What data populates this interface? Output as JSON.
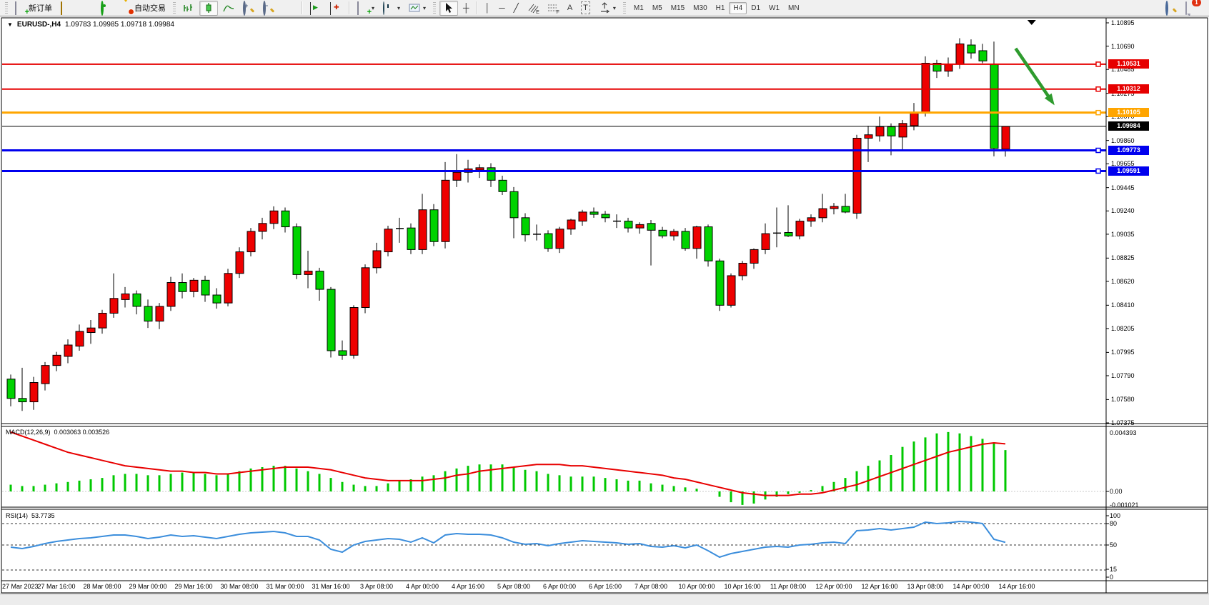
{
  "toolbar": {
    "new_order_label": "新订单",
    "auto_trading_label": "自动交易",
    "notification_count": "1",
    "timeframes": [
      {
        "label": "M1",
        "active": false
      },
      {
        "label": "M5",
        "active": false
      },
      {
        "label": "M15",
        "active": false
      },
      {
        "label": "M30",
        "active": false
      },
      {
        "label": "H1",
        "active": false
      },
      {
        "label": "H4",
        "active": true
      },
      {
        "label": "D1",
        "active": false
      },
      {
        "label": "W1",
        "active": false
      },
      {
        "label": "MN",
        "active": false
      }
    ]
  },
  "icons": {
    "dropdown_arrow": "▾",
    "title_dropdown": "▼",
    "crosshair": "┼",
    "vline": "│",
    "hline": "─",
    "trendline": "╱",
    "channel_suffix": "E",
    "fibo_suffix": "F",
    "text_tool": "A",
    "label_tool": "T",
    "zoom_in_sign": "+",
    "zoom_out_sign": "−",
    "autoscroll_glyph": "▶",
    "chartshift_glyph": "◄"
  },
  "chart": {
    "title_symbol": "EURUSD-,H4",
    "title_ohlc": "1.09783 1.09985 1.09718 1.09984",
    "price_ticks": [
      "1.10895",
      "1.10690",
      "1.10485",
      "1.10275",
      "1.10070",
      "1.09860",
      "1.09655",
      "1.09445",
      "1.09240",
      "1.09035",
      "1.08825",
      "1.08620",
      "1.08410",
      "1.08205",
      "1.07995",
      "1.07790",
      "1.07580",
      "1.07375"
    ],
    "hlines": [
      {
        "price": 1.10531,
        "label": "1.10531",
        "color": "#e60000",
        "width": 2
      },
      {
        "price": 1.10312,
        "label": "1.10312",
        "color": "#e60000",
        "width": 2
      },
      {
        "price": 1.10105,
        "label": "1.10105",
        "color": "#ffa500",
        "width": 3
      },
      {
        "price": 1.09773,
        "label": "1.09773",
        "color": "#0000ee",
        "width": 3
      },
      {
        "price": 1.09591,
        "label": "1.09591",
        "color": "#0000ee",
        "width": 3
      }
    ],
    "bid_line": {
      "price": 1.09984,
      "label": "1.09984",
      "color": "#000000"
    },
    "colors": {
      "bull": "#ee0000",
      "bear": "#00d300",
      "wick": "#000000",
      "macd_hist": "#00c800",
      "macd_signal": "#e80000",
      "rsi_line": "#3c8edc",
      "arrow": "#2e9b2e"
    },
    "time_labels": [
      "27 Mar 2023",
      "27 Mar 16:00",
      "28 Mar 08:00",
      "29 Mar 00:00",
      "29 Mar 16:00",
      "30 Mar 08:00",
      "31 Mar 00:00",
      "31 Mar 16:00",
      "3 Apr 08:00",
      "4 Apr 00:00",
      "4 Apr 16:00",
      "5 Apr 08:00",
      "6 Apr 00:00",
      "6 Apr 16:00",
      "7 Apr 08:00",
      "10 Apr 00:00",
      "10 Apr 16:00",
      "11 Apr 08:00",
      "12 Apr 00:00",
      "12 Apr 16:00",
      "13 Apr 08:00",
      "14 Apr 00:00",
      "14 Apr 16:00"
    ]
  },
  "chart_data": {
    "type": "candlestick",
    "symbol": "EURUSD-",
    "period": "H4",
    "price_range": [
      1.07375,
      1.10895
    ],
    "candles": [
      [
        1.0776,
        1.078,
        1.0752,
        1.0759
      ],
      [
        1.0759,
        1.0786,
        1.0748,
        1.0756
      ],
      [
        1.0756,
        1.0778,
        1.0749,
        1.0773
      ],
      [
        1.0772,
        1.0791,
        1.0766,
        1.0788
      ],
      [
        1.0788,
        1.08,
        1.0783,
        1.0797
      ],
      [
        1.0796,
        1.0811,
        1.079,
        1.0806
      ],
      [
        1.0805,
        1.0824,
        1.0801,
        1.0818
      ],
      [
        1.0817,
        1.0828,
        1.0807,
        1.0821
      ],
      [
        1.0821,
        1.0837,
        1.0816,
        1.0834
      ],
      [
        1.0834,
        1.0869,
        1.083,
        1.0847
      ],
      [
        1.0846,
        1.0857,
        1.0839,
        1.0851
      ],
      [
        1.0851,
        1.0854,
        1.0833,
        1.084
      ],
      [
        1.084,
        1.0846,
        1.0821,
        1.0827
      ],
      [
        1.0827,
        1.0843,
        1.082,
        1.084
      ],
      [
        1.084,
        1.0866,
        1.0836,
        1.0861
      ],
      [
        1.0861,
        1.0869,
        1.0847,
        1.0853
      ],
      [
        1.0853,
        1.0865,
        1.0848,
        1.0863
      ],
      [
        1.0863,
        1.0867,
        1.0844,
        1.085
      ],
      [
        1.085,
        1.0856,
        1.0838,
        1.0843
      ],
      [
        1.0843,
        1.0873,
        1.084,
        1.0869
      ],
      [
        1.0869,
        1.0892,
        1.0865,
        1.0888
      ],
      [
        1.0888,
        1.0909,
        1.0884,
        1.0906
      ],
      [
        1.0906,
        1.0918,
        1.0899,
        1.0913
      ],
      [
        1.0913,
        1.0928,
        1.0908,
        1.0924
      ],
      [
        1.0924,
        1.0927,
        1.0905,
        1.091
      ],
      [
        1.091,
        1.0913,
        1.0864,
        1.0868
      ],
      [
        1.0868,
        1.0889,
        1.0856,
        1.0871
      ],
      [
        1.0871,
        1.0874,
        1.0845,
        1.0855
      ],
      [
        1.0855,
        1.0857,
        1.0795,
        1.0801
      ],
      [
        1.0801,
        1.081,
        1.0793,
        1.0797
      ],
      [
        1.0797,
        1.0841,
        1.0794,
        1.0839
      ],
      [
        1.0839,
        1.0877,
        1.0834,
        1.0874
      ],
      [
        1.0874,
        1.0896,
        1.0869,
        1.0889
      ],
      [
        1.0888,
        1.0911,
        1.0884,
        1.0908
      ],
      [
        1.0908,
        1.0918,
        1.0896,
        1.0909
      ],
      [
        1.0909,
        1.0913,
        1.0886,
        1.089
      ],
      [
        1.089,
        1.0939,
        1.0886,
        1.0925
      ],
      [
        1.0925,
        1.093,
        1.0893,
        1.0897
      ],
      [
        1.0897,
        1.0967,
        1.0891,
        1.0951
      ],
      [
        1.0951,
        1.0974,
        1.0945,
        1.0958
      ],
      [
        1.0958,
        1.0969,
        1.0949,
        1.0961
      ],
      [
        1.096,
        1.0965,
        1.0953,
        1.0962
      ],
      [
        1.0962,
        1.0966,
        1.0945,
        1.0951
      ],
      [
        1.0951,
        1.0955,
        1.0938,
        1.0941
      ],
      [
        1.0941,
        1.0945,
        1.09,
        1.0918
      ],
      [
        1.0918,
        1.0922,
        1.0897,
        1.0903
      ],
      [
        1.0903,
        1.0912,
        1.0898,
        1.0904
      ],
      [
        1.0904,
        1.0907,
        1.0888,
        1.0891
      ],
      [
        1.0891,
        1.091,
        1.0887,
        1.0908
      ],
      [
        1.0908,
        1.0917,
        1.0903,
        1.0916
      ],
      [
        1.0915,
        1.0925,
        1.0911,
        1.0923
      ],
      [
        1.0923,
        1.0927,
        1.0918,
        1.0921
      ],
      [
        1.0921,
        1.0924,
        1.0914,
        1.0918
      ],
      [
        1.0915,
        1.0921,
        1.0909,
        1.0915
      ],
      [
        1.0915,
        1.0918,
        1.0905,
        1.0909
      ],
      [
        1.0909,
        1.0914,
        1.0904,
        1.0912
      ],
      [
        1.0913,
        1.0916,
        1.0876,
        1.0907
      ],
      [
        1.0907,
        1.091,
        1.09,
        1.0902
      ],
      [
        1.0902,
        1.0908,
        1.0898,
        1.0906
      ],
      [
        1.0906,
        1.0909,
        1.0889,
        1.0891
      ],
      [
        1.0891,
        1.0911,
        1.0882,
        1.091
      ],
      [
        1.091,
        1.0912,
        1.0875,
        1.088
      ],
      [
        1.088,
        1.0882,
        1.0836,
        1.0841
      ],
      [
        1.0841,
        1.0869,
        1.0839,
        1.0867
      ],
      [
        1.0867,
        1.088,
        1.0863,
        1.0878
      ],
      [
        1.0878,
        1.0891,
        1.0873,
        1.089
      ],
      [
        1.089,
        1.0913,
        1.0886,
        1.0904
      ],
      [
        1.0904,
        1.0927,
        1.0892,
        1.0905
      ],
      [
        1.0905,
        1.0929,
        1.0901,
        1.0902
      ],
      [
        1.0902,
        1.0917,
        1.0899,
        1.0915
      ],
      [
        1.0915,
        1.0921,
        1.091,
        1.0918
      ],
      [
        1.0918,
        1.0939,
        1.0914,
        1.0926
      ],
      [
        1.0926,
        1.0931,
        1.0921,
        1.0928
      ],
      [
        1.0928,
        1.0939,
        1.0922,
        1.0923
      ],
      [
        1.0922,
        1.0991,
        1.0917,
        1.0988
      ],
      [
        1.0988,
        1.0999,
        1.0967,
        1.0991
      ],
      [
        1.099,
        1.1007,
        1.0985,
        1.0998
      ],
      [
        1.0998,
        1.1001,
        1.0973,
        1.099
      ],
      [
        1.0989,
        1.1004,
        1.0978,
        1.1001
      ],
      [
        1.0999,
        1.1019,
        1.0995,
        1.101
      ],
      [
        1.101,
        1.106,
        1.1007,
        1.1054
      ],
      [
        1.1054,
        1.1057,
        1.1041,
        1.1047
      ],
      [
        1.1047,
        1.1059,
        1.1042,
        1.1053
      ],
      [
        1.1053,
        1.1076,
        1.1049,
        1.1071
      ],
      [
        1.107,
        1.1075,
        1.1058,
        1.1063
      ],
      [
        1.1065,
        1.1071,
        1.1054,
        1.1056
      ],
      [
        1.1053,
        1.1073,
        1.0972,
        1.0979
      ],
      [
        1.09783,
        1.09985,
        1.09718,
        1.09984
      ]
    ],
    "macd": {
      "label": "MACD(12,26,9)",
      "values_text": "0.003063 0.003526",
      "axis_ticks": [
        "0.004393",
        "0.00",
        "-0.001021"
      ],
      "max": 0.004393,
      "min": -0.001021,
      "hist": [
        0.0005,
        0.0004,
        0.0004,
        0.0005,
        0.0006,
        0.0007,
        0.0008,
        0.0009,
        0.001,
        0.0012,
        0.0013,
        0.0013,
        0.0012,
        0.0012,
        0.0013,
        0.0014,
        0.0014,
        0.0013,
        0.0012,
        0.0013,
        0.0015,
        0.0017,
        0.0018,
        0.0019,
        0.0019,
        0.0017,
        0.0015,
        0.0013,
        0.001,
        0.0007,
        0.0005,
        0.0004,
        0.0004,
        0.0006,
        0.0008,
        0.0009,
        0.0011,
        0.0012,
        0.0015,
        0.0017,
        0.0019,
        0.002,
        0.002,
        0.002,
        0.0018,
        0.0016,
        0.0015,
        0.0013,
        0.0012,
        0.0011,
        0.0011,
        0.0011,
        0.001,
        0.0009,
        0.0008,
        0.0008,
        0.0006,
        0.0005,
        0.0004,
        0.0003,
        0.0002,
        0.0,
        -0.0004,
        -0.0008,
        -0.001,
        -0.0009,
        -0.0006,
        -0.0004,
        -0.0002,
        -0.0001,
        0.0001,
        0.0004,
        0.0007,
        0.001,
        0.0015,
        0.0019,
        0.0023,
        0.0027,
        0.0033,
        0.0037,
        0.004,
        0.0043,
        0.0044,
        0.0043,
        0.0041,
        0.0039,
        0.0036,
        0.003063
      ],
      "signal": [
        0.0044,
        0.0041,
        0.0038,
        0.0035,
        0.0032,
        0.0029,
        0.0027,
        0.0025,
        0.0023,
        0.0021,
        0.0019,
        0.0018,
        0.0017,
        0.0016,
        0.0015,
        0.0015,
        0.0014,
        0.0014,
        0.0013,
        0.0013,
        0.0014,
        0.0015,
        0.0016,
        0.0017,
        0.0018,
        0.0018,
        0.0018,
        0.0017,
        0.0016,
        0.0014,
        0.0012,
        0.001,
        0.0009,
        0.0008,
        0.0008,
        0.0008,
        0.0008,
        0.0009,
        0.001,
        0.0012,
        0.0013,
        0.0015,
        0.0016,
        0.0017,
        0.0018,
        0.0019,
        0.002,
        0.002,
        0.002,
        0.0019,
        0.0019,
        0.0018,
        0.0017,
        0.0016,
        0.0015,
        0.0014,
        0.0013,
        0.0012,
        0.001,
        0.0009,
        0.0007,
        0.0005,
        0.0003,
        0.0001,
        -0.0001,
        -0.0002,
        -0.0003,
        -0.0003,
        -0.0003,
        -0.0002,
        -0.0002,
        -0.0001,
        0.0001,
        0.0003,
        0.0005,
        0.0008,
        0.0011,
        0.0014,
        0.0017,
        0.002,
        0.0023,
        0.0026,
        0.0029,
        0.0031,
        0.0033,
        0.0035,
        0.0036,
        0.003526
      ]
    },
    "rsi": {
      "label": "RSI(14)",
      "value_text": "53.7735",
      "axis_ticks": [
        "100",
        "80",
        "50",
        "15",
        "0"
      ],
      "levels": [
        80,
        50,
        15
      ],
      "values": [
        47,
        45,
        48,
        52,
        55,
        57,
        59,
        60,
        62,
        64,
        64,
        62,
        59,
        61,
        64,
        62,
        63,
        61,
        59,
        62,
        65,
        67,
        68,
        69,
        67,
        62,
        62,
        57,
        44,
        40,
        50,
        55,
        57,
        59,
        58,
        54,
        60,
        53,
        64,
        66,
        65,
        65,
        64,
        60,
        54,
        51,
        52,
        49,
        52,
        54,
        56,
        55,
        54,
        53,
        51,
        52,
        48,
        47,
        49,
        46,
        50,
        42,
        33,
        38,
        41,
        44,
        47,
        48,
        47,
        50,
        51,
        53,
        54,
        52,
        70,
        71,
        73,
        71,
        73,
        75,
        82,
        80,
        81,
        83,
        82,
        80,
        58,
        53.7735
      ]
    },
    "annotations": {
      "arrow": {
        "from_index": 87.9,
        "from_price": 1.1067,
        "to_index": 91.3,
        "to_price": 1.1017
      },
      "top_marker_index": 89.3
    }
  }
}
